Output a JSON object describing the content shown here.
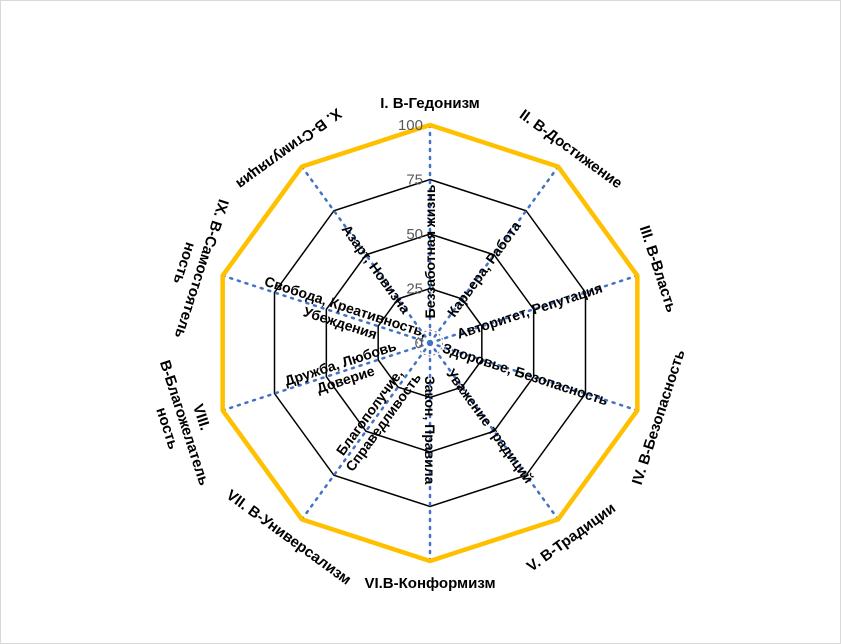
{
  "chart_data": {
    "type": "radar",
    "title": "",
    "categories": [
      "I. В-Гедонизм",
      "II. В-Достижение",
      "III. В-Власть",
      "IV. В-Безопасность",
      "V. В-Традиции",
      "VI.В-Конформизм",
      "VII. В-Универсализм",
      "VIII. В-Благожелатель ность",
      "IX. В-Самостоятель ность",
      "X. В-Стимуляция"
    ],
    "category_lines": [
      [
        "I. В-Гедонизм"
      ],
      [
        "II. В-Достижение"
      ],
      [
        "III. В-Власть"
      ],
      [
        "IV. В-Безопасность"
      ],
      [
        "V. В-Традиции"
      ],
      [
        "VI.В-Конформизм"
      ],
      [
        "VII. В-Универсализм"
      ],
      [
        "VIII.",
        "В-Благожелатель",
        "ность"
      ],
      [
        "IX. В-Самостоятель",
        "ность"
      ],
      [
        "X.  В-Стимуляция"
      ]
    ],
    "inner_labels": [
      [
        "Беззаботная жизнь"
      ],
      [
        "Карьера, Работа"
      ],
      [
        "Авторитет, Репутация"
      ],
      [
        "Здоровье, Безопасность"
      ],
      [
        "Уважение традиций"
      ],
      [
        "Закон, Правила"
      ],
      [
        "Благополучие,",
        "Справедливость"
      ],
      [
        "Дружба, Любовь",
        "Доверие"
      ],
      [
        "Свобода, Креативность,",
        "Убеждения"
      ],
      [
        "Азарт, Новизна"
      ]
    ],
    "rlim": [
      0,
      100
    ],
    "ticks": [
      0,
      25,
      50,
      75,
      100
    ],
    "tick_labels": [
      "0",
      "25",
      "50",
      "75",
      "100"
    ],
    "series": [
      {
        "values": [
          100,
          100,
          100,
          100,
          100,
          100,
          100,
          100,
          100,
          100
        ],
        "color": "#FFC000"
      }
    ],
    "grid_color": "#000000",
    "spoke_color": "#4472C4",
    "legend": "none"
  }
}
